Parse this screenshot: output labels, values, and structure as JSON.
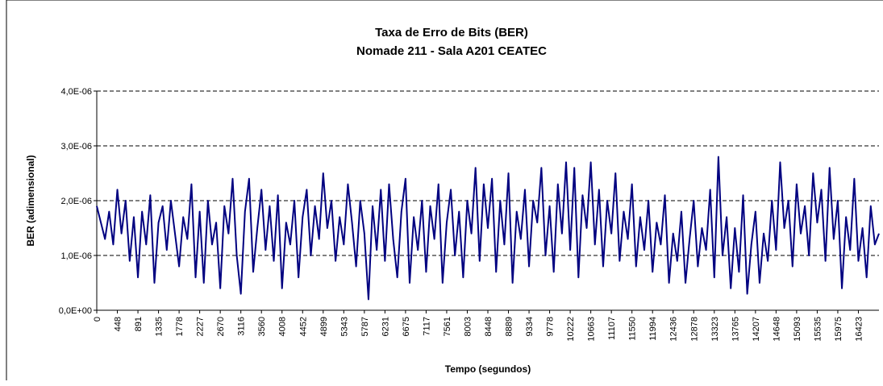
{
  "chart_data": {
    "type": "line",
    "title": "Taxa de Erro de Bits (BER)",
    "subtitle": "Nomade 211 - Sala A201 CEATEC",
    "x_label": "Tempo (segundos)",
    "y_label": "BER (adimensional)",
    "categories": [
      0,
      null,
      null,
      null,
      null,
      448,
      null,
      null,
      null,
      null,
      891,
      null,
      null,
      null,
      null,
      1335,
      null,
      null,
      null,
      null,
      1778,
      null,
      null,
      null,
      null,
      2227,
      null,
      null,
      null,
      null,
      2670,
      null,
      null,
      null,
      null,
      3116,
      null,
      null,
      null,
      null,
      3560,
      null,
      null,
      null,
      null,
      4008,
      null,
      null,
      null,
      null,
      4452,
      null,
      null,
      null,
      null,
      4899,
      null,
      null,
      null,
      null,
      5343,
      null,
      null,
      null,
      null,
      5787,
      null,
      null,
      null,
      null,
      6231,
      null,
      null,
      null,
      null,
      6675,
      null,
      null,
      null,
      null,
      7117,
      null,
      null,
      null,
      null,
      7561,
      null,
      null,
      null,
      null,
      8003,
      null,
      null,
      null,
      null,
      8448,
      null,
      null,
      null,
      null,
      8889,
      null,
      null,
      null,
      null,
      9334,
      null,
      null,
      null,
      null,
      9778,
      null,
      null,
      null,
      null,
      10222,
      null,
      null,
      null,
      null,
      10663,
      null,
      null,
      null,
      null,
      11107,
      null,
      null,
      null,
      null,
      11550,
      null,
      null,
      null,
      null,
      11994,
      null,
      null,
      null,
      null,
      12436,
      null,
      null,
      null,
      null,
      12878,
      null,
      null,
      null,
      null,
      13323,
      null,
      null,
      null,
      null,
      13765,
      null,
      null,
      null,
      null,
      14207,
      null,
      null,
      null,
      null,
      14648,
      null,
      null,
      null,
      null,
      15093,
      null,
      null,
      null,
      null,
      15535,
      null,
      null,
      null,
      null,
      15975,
      null,
      null,
      null,
      null,
      16423,
      null,
      null,
      null,
      null,
      null
    ],
    "series": [
      {
        "name": "BER",
        "color": "#000080",
        "values": [
          1.9e-06,
          1.6e-06,
          1.3e-06,
          1.8e-06,
          1.2e-06,
          2.2e-06,
          1.4e-06,
          2e-06,
          9e-07,
          1.7e-06,
          6e-07,
          1.8e-06,
          1.2e-06,
          2.1e-06,
          5e-07,
          1.6e-06,
          1.9e-06,
          1.1e-06,
          2e-06,
          1.4e-06,
          8e-07,
          1.7e-06,
          1.3e-06,
          2.3e-06,
          6e-07,
          1.8e-06,
          5e-07,
          2e-06,
          1.2e-06,
          1.6e-06,
          4e-07,
          1.9e-06,
          1.4e-06,
          2.4e-06,
          1e-06,
          3e-07,
          1.8e-06,
          2.4e-06,
          7e-07,
          1.5e-06,
          2.2e-06,
          1.1e-06,
          1.9e-06,
          9e-07,
          2.1e-06,
          4e-07,
          1.6e-06,
          1.2e-06,
          2e-06,
          6e-07,
          1.7e-06,
          2.2e-06,
          1e-06,
          1.9e-06,
          1.3e-06,
          2.5e-06,
          1.5e-06,
          2e-06,
          9e-07,
          1.7e-06,
          1.2e-06,
          2.3e-06,
          1.6e-06,
          8e-07,
          2e-06,
          1.4e-06,
          2e-07,
          1.9e-06,
          1.1e-06,
          2.2e-06,
          9e-07,
          2.3e-06,
          1.3e-06,
          6e-07,
          1.8e-06,
          2.4e-06,
          5e-07,
          1.7e-06,
          1.1e-06,
          2e-06,
          7e-07,
          1.9e-06,
          1.3e-06,
          2.3e-06,
          5e-07,
          1.6e-06,
          2.2e-06,
          1e-06,
          1.8e-06,
          6e-07,
          2e-06,
          1.4e-06,
          2.6e-06,
          9e-07,
          2.3e-06,
          1.5e-06,
          2.4e-06,
          7e-07,
          2e-06,
          1.2e-06,
          2.5e-06,
          5e-07,
          1.8e-06,
          1.3e-06,
          2.2e-06,
          8e-07,
          2e-06,
          1.6e-06,
          2.6e-06,
          1e-06,
          1.9e-06,
          7e-07,
          2.3e-06,
          1.4e-06,
          2.7e-06,
          1.1e-06,
          2.6e-06,
          6e-07,
          2.1e-06,
          1.5e-06,
          2.7e-06,
          1.2e-06,
          2.2e-06,
          8e-07,
          2e-06,
          1.4e-06,
          2.5e-06,
          9e-07,
          1.8e-06,
          1.3e-06,
          2.3e-06,
          8e-07,
          1.7e-06,
          1.1e-06,
          2e-06,
          7e-07,
          1.6e-06,
          1.2e-06,
          2.1e-06,
          5e-07,
          1.4e-06,
          9e-07,
          1.8e-06,
          5e-07,
          1.3e-06,
          2e-06,
          8e-07,
          1.5e-06,
          1.1e-06,
          2.2e-06,
          6e-07,
          2.8e-06,
          1e-06,
          1.7e-06,
          4e-07,
          1.5e-06,
          7e-07,
          2.1e-06,
          3e-07,
          1.2e-06,
          1.8e-06,
          5e-07,
          1.4e-06,
          9e-07,
          2e-06,
          1.1e-06,
          2.7e-06,
          1.5e-06,
          2e-06,
          8e-07,
          2.3e-06,
          1.4e-06,
          1.9e-06,
          1e-06,
          2.5e-06,
          1.6e-06,
          2.2e-06,
          9e-07,
          2.6e-06,
          1.3e-06,
          2e-06,
          4e-07,
          1.7e-06,
          1.1e-06,
          2.4e-06,
          9e-07,
          1.5e-06,
          6e-07,
          1.9e-06,
          1.2e-06,
          1.4e-06
        ]
      }
    ],
    "ylim": [
      0,
      4e-06
    ],
    "yticks": [
      {
        "value": 0,
        "label": "0,0E+00"
      },
      {
        "value": 1e-06,
        "label": "1,0E-06"
      },
      {
        "value": 2e-06,
        "label": "2,0E-06"
      },
      {
        "value": 3e-06,
        "label": "3,0E-06"
      },
      {
        "value": 4e-06,
        "label": "4,0E-06"
      }
    ],
    "grid": true
  }
}
